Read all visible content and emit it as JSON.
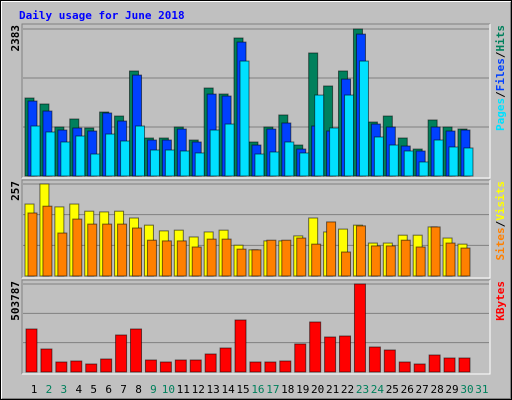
{
  "title": "Daily usage for June 2018",
  "chart_data": [
    {
      "type": "bar",
      "ylim": [
        0,
        2383
      ],
      "yticks": [
        2383
      ],
      "grid_divisions": 3,
      "label_separator": "/",
      "series": [
        {
          "name": "Hits",
          "color": "#00805c",
          "values": [
            1264,
            1167,
            794,
            924,
            778,
            1037,
            972,
            1702,
            616,
            616,
            794,
            583,
            1426,
            1329,
            2237,
            551,
            794,
            989,
            502,
            1994,
            1459,
            1702,
            2383,
            875,
            972,
            616,
            437,
            908,
            794,
            762,
            null
          ]
        },
        {
          "name": "Files",
          "color": "#0040ff",
          "values": [
            1215,
            1053,
            745,
            778,
            729,
            1021,
            891,
            1636,
            583,
            583,
            761,
            551,
            1328,
            1296,
            2171,
            502,
            761,
            859,
            437,
            810,
            729,
            1571,
            2300,
            842,
            794,
            486,
            405,
            794,
            729,
            745,
            null
          ]
        },
        {
          "name": "Pages",
          "color": "#00e0ff",
          "values": [
            810,
            713,
            551,
            648,
            356,
            680,
            567,
            810,
            421,
            421,
            405,
            373,
            745,
            842,
            1863,
            356,
            389,
            551,
            373,
            1312,
            778,
            1312,
            1863,
            632,
            502,
            405,
            227,
            583,
            470,
            454,
            null
          ]
        }
      ]
    },
    {
      "type": "bar",
      "ylim": [
        0,
        257
      ],
      "yticks": [
        257
      ],
      "grid_divisions": 3,
      "label_separator": "/",
      "series": [
        {
          "name": "Visits",
          "color": "#ffff00",
          "values": [
            201,
            257,
            193,
            201,
            181,
            179,
            181,
            162,
            142,
            126,
            128,
            109,
            123,
            128,
            86,
            73,
            98,
            98,
            112,
            162,
            123,
            131,
            142,
            92,
            92,
            114,
            114,
            137,
            106,
            89,
            null
          ]
        },
        {
          "name": "Sites",
          "color": "#ff8000",
          "values": [
            176,
            195,
            120,
            159,
            145,
            145,
            145,
            134,
            100,
            98,
            98,
            81,
            103,
            103,
            75,
            73,
            100,
            100,
            106,
            89,
            151,
            67,
            140,
            84,
            84,
            100,
            81,
            137,
            92,
            78,
            null
          ]
        }
      ]
    },
    {
      "type": "bar",
      "ylim": [
        0,
        503787
      ],
      "yticks": [
        503787
      ],
      "grid_divisions": 3,
      "categories": [
        "1",
        "2",
        "3",
        "4",
        "5",
        "6",
        "7",
        "8",
        "9",
        "10",
        "11",
        "12",
        "13",
        "14",
        "15",
        "16",
        "17",
        "18",
        "19",
        "20",
        "21",
        "22",
        "23",
        "24",
        "25",
        "26",
        "27",
        "28",
        "29",
        "30",
        "31"
      ],
      "category_colors": [
        "#000000",
        "#00805c",
        "#00805c",
        "#000000",
        "#000000",
        "#000000",
        "#000000",
        "#000000",
        "#00805c",
        "#00805c",
        "#000000",
        "#000000",
        "#000000",
        "#000000",
        "#000000",
        "#00805c",
        "#00805c",
        "#000000",
        "#000000",
        "#000000",
        "#000000",
        "#000000",
        "#00805c",
        "#00805c",
        "#000000",
        "#000000",
        "#000000",
        "#000000",
        "#000000",
        "#00805c",
        "#00805c"
      ],
      "series": [
        {
          "name": "KBytes",
          "color": "#ff0000",
          "values": [
            246175,
            131675,
            57250,
            62975,
            45800,
            74425,
            211825,
            246175,
            68700,
            57250,
            68700,
            68700,
            103050,
            137400,
            297700,
            57250,
            57250,
            62975,
            160300,
            286250,
            200375,
            206100,
            503787,
            143125,
            125950,
            57250,
            45800,
            97325,
            80150,
            80150,
            null
          ]
        }
      ]
    }
  ]
}
